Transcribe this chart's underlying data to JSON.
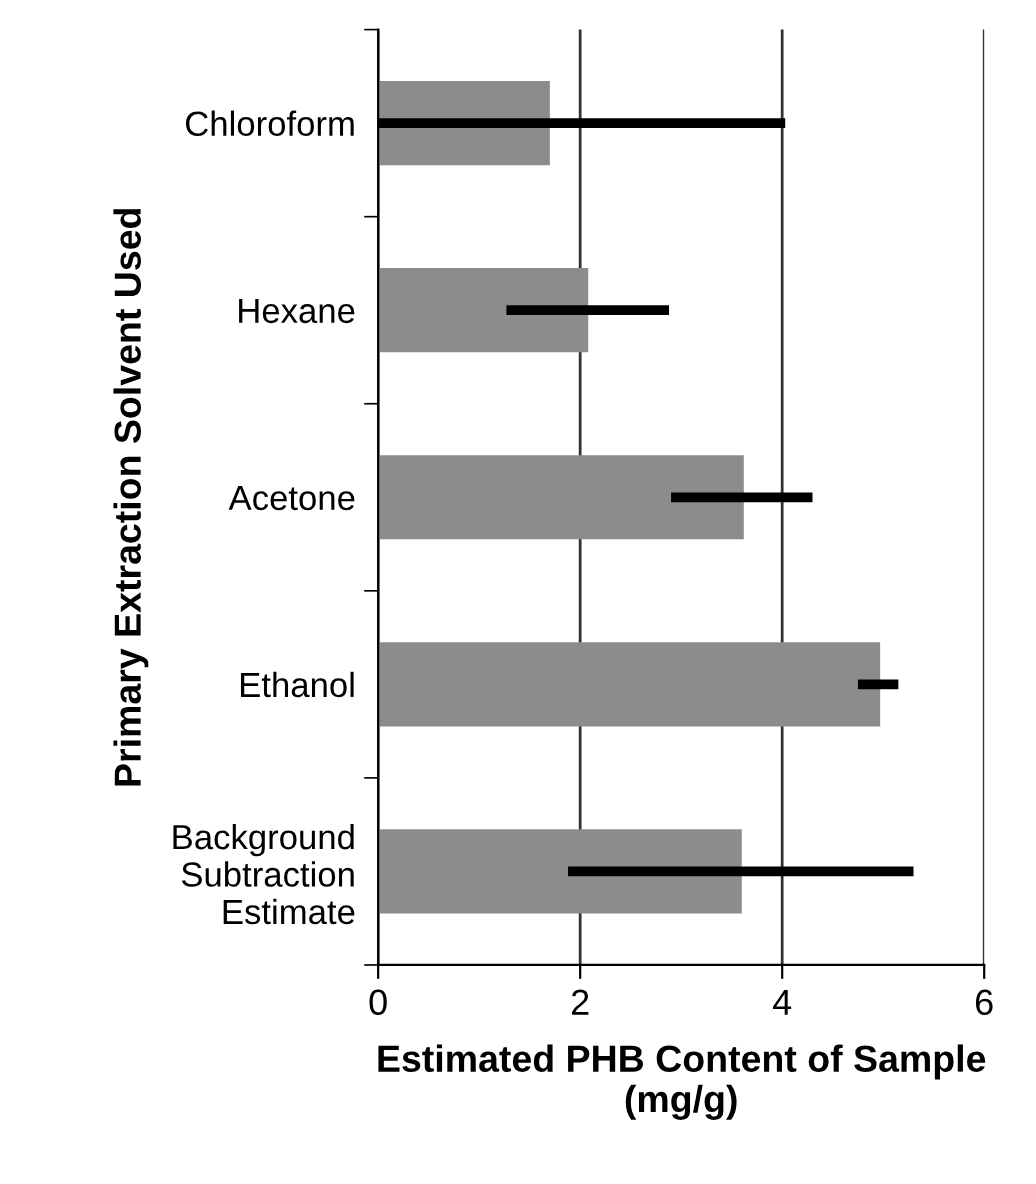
{
  "chart_data": {
    "type": "bar",
    "orientation": "horizontal",
    "categories": [
      "Chloroform",
      "Hexane",
      "Acetone",
      "Ethanol",
      "Background\nSubtraction\nEstimate"
    ],
    "values": [
      1.7,
      2.08,
      3.62,
      4.97,
      3.6
    ],
    "errors": [
      [
        0,
        4.03
      ],
      [
        1.27,
        2.88
      ],
      [
        2.9,
        4.3
      ],
      [
        4.75,
        5.15
      ],
      [
        1.88,
        5.3
      ]
    ],
    "color": "#8c8c8c",
    "xlabel": "Estimated PHB Content of Sample\n(mg/g)",
    "ylabel": "Primary Extraction Solvent Used",
    "xlim": [
      0,
      6
    ],
    "xticks": [
      0,
      2,
      4,
      6
    ],
    "grid": "x"
  }
}
